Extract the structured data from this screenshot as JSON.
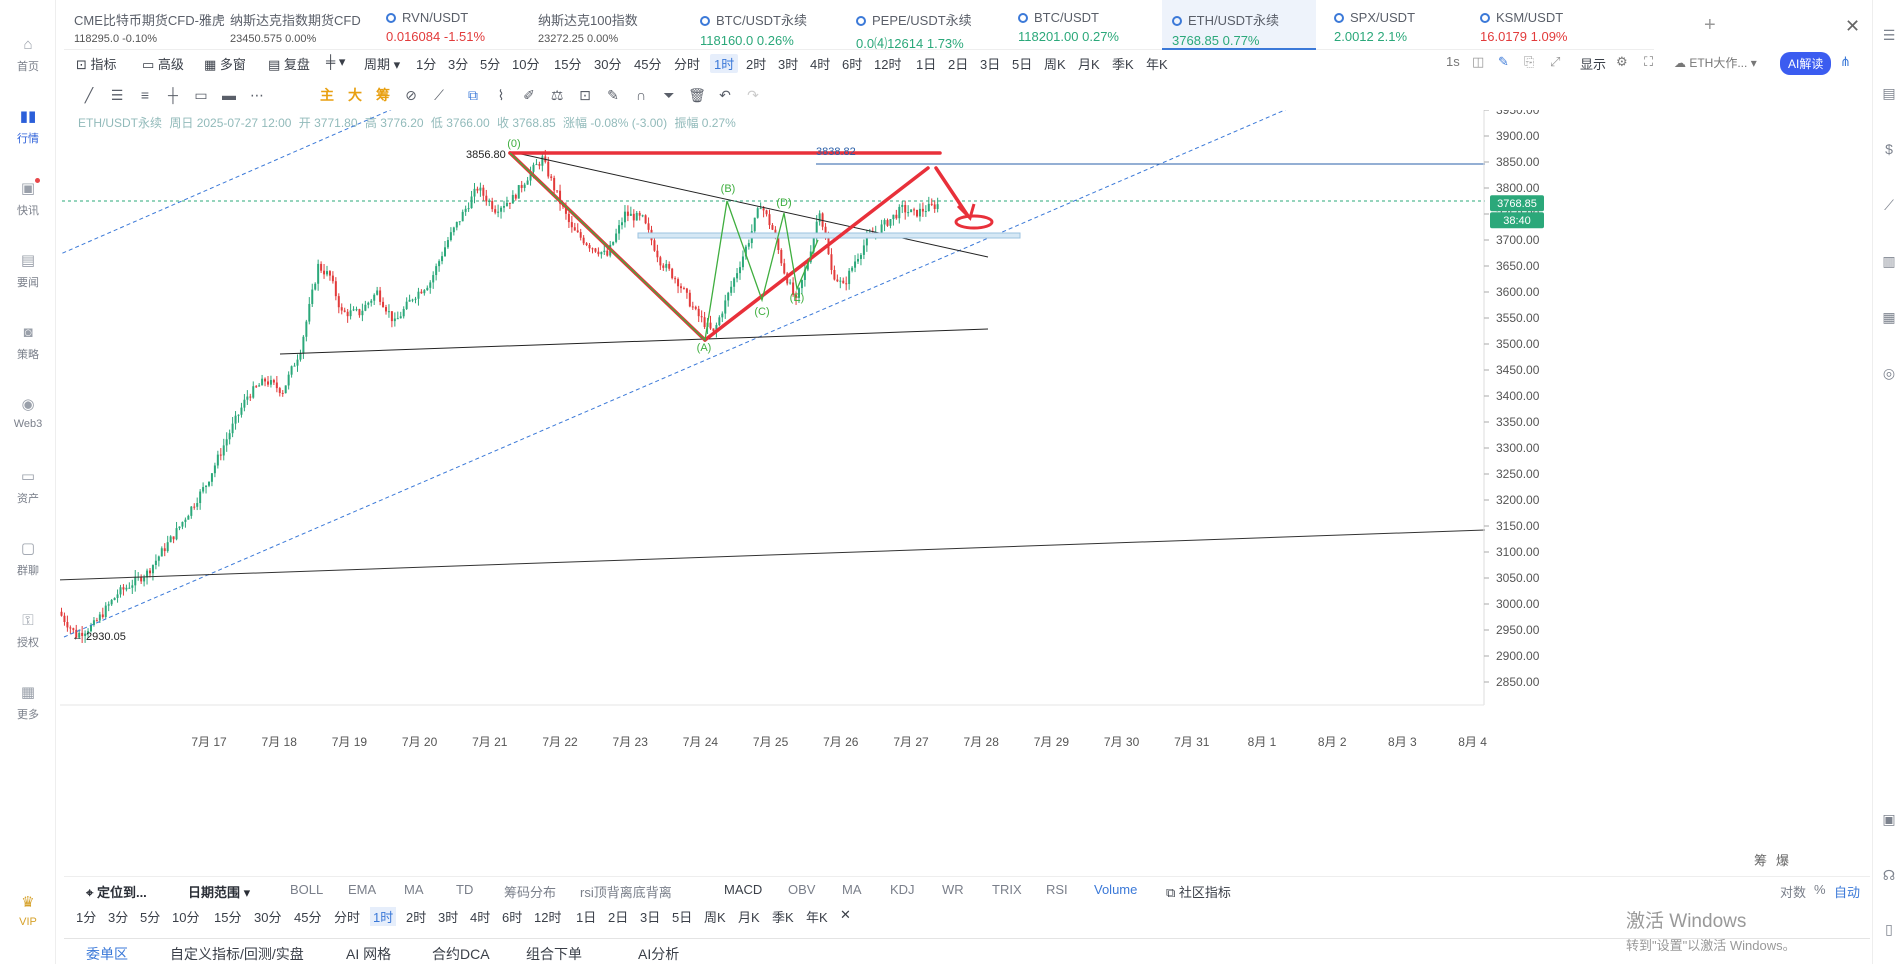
{
  "left_nav": [
    {
      "label": "首页",
      "icon": "home-icon"
    },
    {
      "label": "行情",
      "icon": "chart-bars-icon"
    },
    {
      "label": "快讯",
      "icon": "news-icon"
    },
    {
      "label": "要闻",
      "icon": "document-icon"
    },
    {
      "label": "策略",
      "icon": "robot-icon"
    },
    {
      "label": "Web3",
      "icon": "web3-icon"
    },
    {
      "label": "资产",
      "icon": "wallet-icon"
    },
    {
      "label": "群聊",
      "icon": "chat-icon"
    },
    {
      "label": "授权",
      "icon": "key-icon"
    },
    {
      "label": "更多",
      "icon": "grid-icon"
    }
  ],
  "vip_label": "VIP",
  "tickers": [
    {
      "name": "CME比特币期货CFD-雅虎",
      "price": "118295.0",
      "change": "-0.10%"
    },
    {
      "name": "纳斯达克指数期货CFD",
      "price": "23450.575",
      "change": "0.00%"
    },
    {
      "name": "RVN/USDT",
      "price": "0.016084",
      "change": "-1.51%"
    },
    {
      "name": "纳斯达克100指数",
      "price": "23272.25",
      "change": "0.00%"
    },
    {
      "name": "BTC/USDT永续",
      "price": "118160.0",
      "change": "0.26%"
    },
    {
      "name": "PEPE/USDT永续",
      "price": "0.0⑷12614",
      "change": "1.73%"
    },
    {
      "name": "BTC/USDT",
      "price": "118201.00",
      "change": "0.27%"
    },
    {
      "name": "ETH/USDT永续",
      "price": "3768.85",
      "change": "0.77%"
    },
    {
      "name": "SPX/USDT",
      "price": "2.0012",
      "change": "2.1%"
    },
    {
      "name": "KSM/USDT",
      "price": "16.0179",
      "change": "1.09%"
    }
  ],
  "toolbar": {
    "indicator": "指标",
    "advanced": "高级",
    "multi": "多窗",
    "replay": "复盘",
    "period": "周期",
    "periods": [
      "1分",
      "3分",
      "5分",
      "10分",
      "15分",
      "30分",
      "45分",
      "分时",
      "1时",
      "2时",
      "3时",
      "4时",
      "6时",
      "12时",
      "1日",
      "2日",
      "3日",
      "5日",
      "周K",
      "月K",
      "季K",
      "年K"
    ],
    "selected_period": "1时",
    "interval": "1s",
    "display": "显示",
    "eth_label": "ETH大作...",
    "ai_label": "AI解读"
  },
  "drawing_tools": {
    "main": "主",
    "big": "大",
    "chips": "筹"
  },
  "ohlc": {
    "symbol": "ETH/USDT永续",
    "period": "周日 2025-07-27 12:00",
    "open": "开 3771.80",
    "high": "高 3776.20",
    "low": "低 3766.00",
    "close": "收 3768.85",
    "change": "涨幅 -0.08% (-3.00)",
    "amplitude": "振幅 0.27%"
  },
  "chart_data": {
    "type": "candlestick",
    "symbol": "ETH/USDT永续",
    "y_ticks": [
      3950,
      3900,
      3850,
      3800,
      3750,
      3700,
      3650,
      3600,
      3550,
      3500,
      3450,
      3400,
      3350,
      3300,
      3250,
      3200,
      3150,
      3100,
      3050,
      3000,
      2950,
      2900,
      2850
    ],
    "x_ticks": [
      "7月 17",
      "7月 18",
      "7月 19",
      "7月 20",
      "7月 21",
      "7月 22",
      "7月 23",
      "7月 24",
      "7月 25",
      "7月 26",
      "7月 27",
      "7月 28",
      "7月 29",
      "7月 30",
      "7月 31",
      "8月 1",
      "8月 2",
      "8月 3",
      "8月 4"
    ],
    "last_price": "3768.85",
    "countdown": "38:40",
    "high_label": "3856.80",
    "low_label": "2930.05",
    "resistance_label": "3838.82",
    "wave_labels": [
      "(0)",
      "(A)",
      "(B)",
      "(C)",
      "(D)",
      "(E)"
    ],
    "y_range": [
      2850,
      3960
    ]
  },
  "indicator_bar": {
    "locate": "定位到...",
    "date_range": "日期范围",
    "main_inds": [
      "BOLL",
      "EMA",
      "MA",
      "TD",
      "筹码分布",
      "rsi顶背离底背离"
    ],
    "sub_inds": [
      "MACD",
      "OBV",
      "MA",
      "KDJ",
      "WR",
      "TRIX",
      "RSI",
      "Volume"
    ],
    "community": "社区指标",
    "log": "对数",
    "pct": "%",
    "auto": "自动",
    "chips": "筹",
    "burst": "爆"
  },
  "period_bar": [
    "1分",
    "3分",
    "5分",
    "10分",
    "15分",
    "30分",
    "45分",
    "分时",
    "1时",
    "2时",
    "3时",
    "4时",
    "6时",
    "12时",
    "1日",
    "2日",
    "3日",
    "5日",
    "周K",
    "月K",
    "季K",
    "年K"
  ],
  "bottom_tabs": [
    "委单区",
    "自定义指标/回测/实盘",
    "AI 网格",
    "合约DCA",
    "组合下单",
    "AI分析"
  ],
  "watermark": {
    "line1": "激活 Windows",
    "line2": "转到\"设置\"以激活 Windows。"
  },
  "colors": {
    "up": "#2ba87a",
    "down": "#e23b3b",
    "accent": "#3b79d8",
    "drawing_red": "#e8303a"
  }
}
